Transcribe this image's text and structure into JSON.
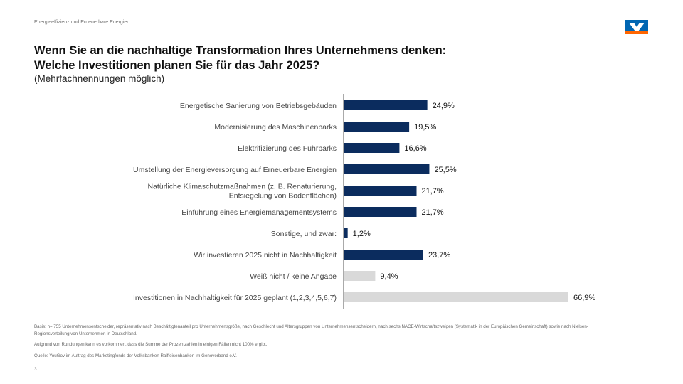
{
  "header": {
    "label": "Energieeffizienz und Erneuerbare Energien"
  },
  "title": {
    "line1": "Wenn Sie an die nachhaltige Transformation Ihres Unternehmens denken:",
    "line2": "Welche Investitionen planen Sie für das Jahr 2025?"
  },
  "subtitle": "(Mehrfachnennungen möglich)",
  "colors": {
    "primary": "#0b2c5e",
    "secondary": "#d9d9d9",
    "logo_blue": "#0066b3",
    "logo_orange": "#ff6600"
  },
  "chart_data": {
    "type": "bar",
    "orientation": "horizontal",
    "xlim": [
      0,
      70
    ],
    "grid": false,
    "categories": [
      [
        "Energetische Sanierung von Betriebsgebäuden"
      ],
      [
        "Modernisierung des Maschinenparks"
      ],
      [
        "Elektrifizierung des Fuhrparks"
      ],
      [
        "Umstellung der Energieversorgung auf Erneuerbare Energien"
      ],
      [
        "Natürliche Klimaschutzmaßnahmen (z. B. Renaturierung,",
        "Entsiegelung von Bodenflächen)"
      ],
      [
        "Einführung eines Energiemanagementsystems"
      ],
      [
        "Sonstige, und zwar:"
      ],
      [
        "Wir investieren 2025 nicht in Nachhaltigkeit"
      ],
      [
        "Weiß nicht / keine Angabe"
      ],
      [
        "Investitionen in Nachhaltigkeit für 2025 geplant (1,2,3,4,5,6,7)"
      ]
    ],
    "values": [
      24.9,
      19.5,
      16.6,
      25.5,
      21.7,
      21.7,
      1.2,
      23.7,
      9.4,
      66.9
    ],
    "value_labels": [
      "24,9%",
      "19,5%",
      "16,6%",
      "25,5%",
      "21,7%",
      "21,7%",
      "1,2%",
      "23,7%",
      "9,4%",
      "66,9%"
    ],
    "bar_styles": [
      "primary",
      "primary",
      "primary",
      "primary",
      "primary",
      "primary",
      "primary",
      "primary",
      "secondary",
      "secondary"
    ]
  },
  "footnotes": [
    "Basis: n= 755 Unternehmensentscheider, repräsentativ nach Beschäftigtenanteil pro Unternehmensgröße, nach Geschlecht und Altersgruppen von Unternehmensentscheidern, nach sechs NACE-Wirtschaftszweigen (Systematik in der Europäischen Gemeinschaft) sowie nach Nielsen-Regionsverteilung von Unternehmen in Deutschland.",
    "Aufgrund von Rundungen kann es vorkommen, dass die Summe der Prozentzahlen in einigen Fällen nicht 100% ergibt.",
    "Quelle: YouGov im Auftrag des Marketingfonds der Volksbanken Raiffeisenbanken im Genoverband e.V."
  ],
  "page_number": "3"
}
